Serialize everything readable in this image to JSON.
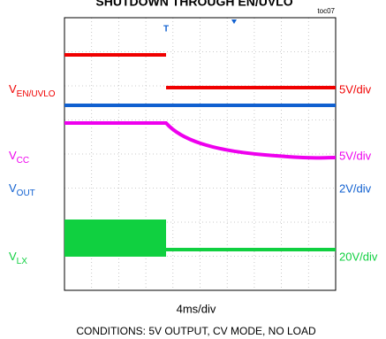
{
  "title": "SHUTDOWN THROUGH EN/UVLO",
  "tag": "toc07",
  "channels": [
    {
      "name": "V",
      "sub": "EN/UVLO",
      "scale": "5V/div",
      "color": "#f00000"
    },
    {
      "name": "V",
      "sub": "CC",
      "scale": "5V/div",
      "color": "#ee00ee"
    },
    {
      "name": "V",
      "sub": "OUT",
      "scale": "2V/div",
      "color": "#1060d0"
    },
    {
      "name": "V",
      "sub": "LX",
      "scale": "20V/div",
      "color": "#10d040"
    }
  ],
  "time_scale": "4ms/div",
  "conditions": "CONDITIONS: 5V OUTPUT, CV MODE, NO LOAD"
}
